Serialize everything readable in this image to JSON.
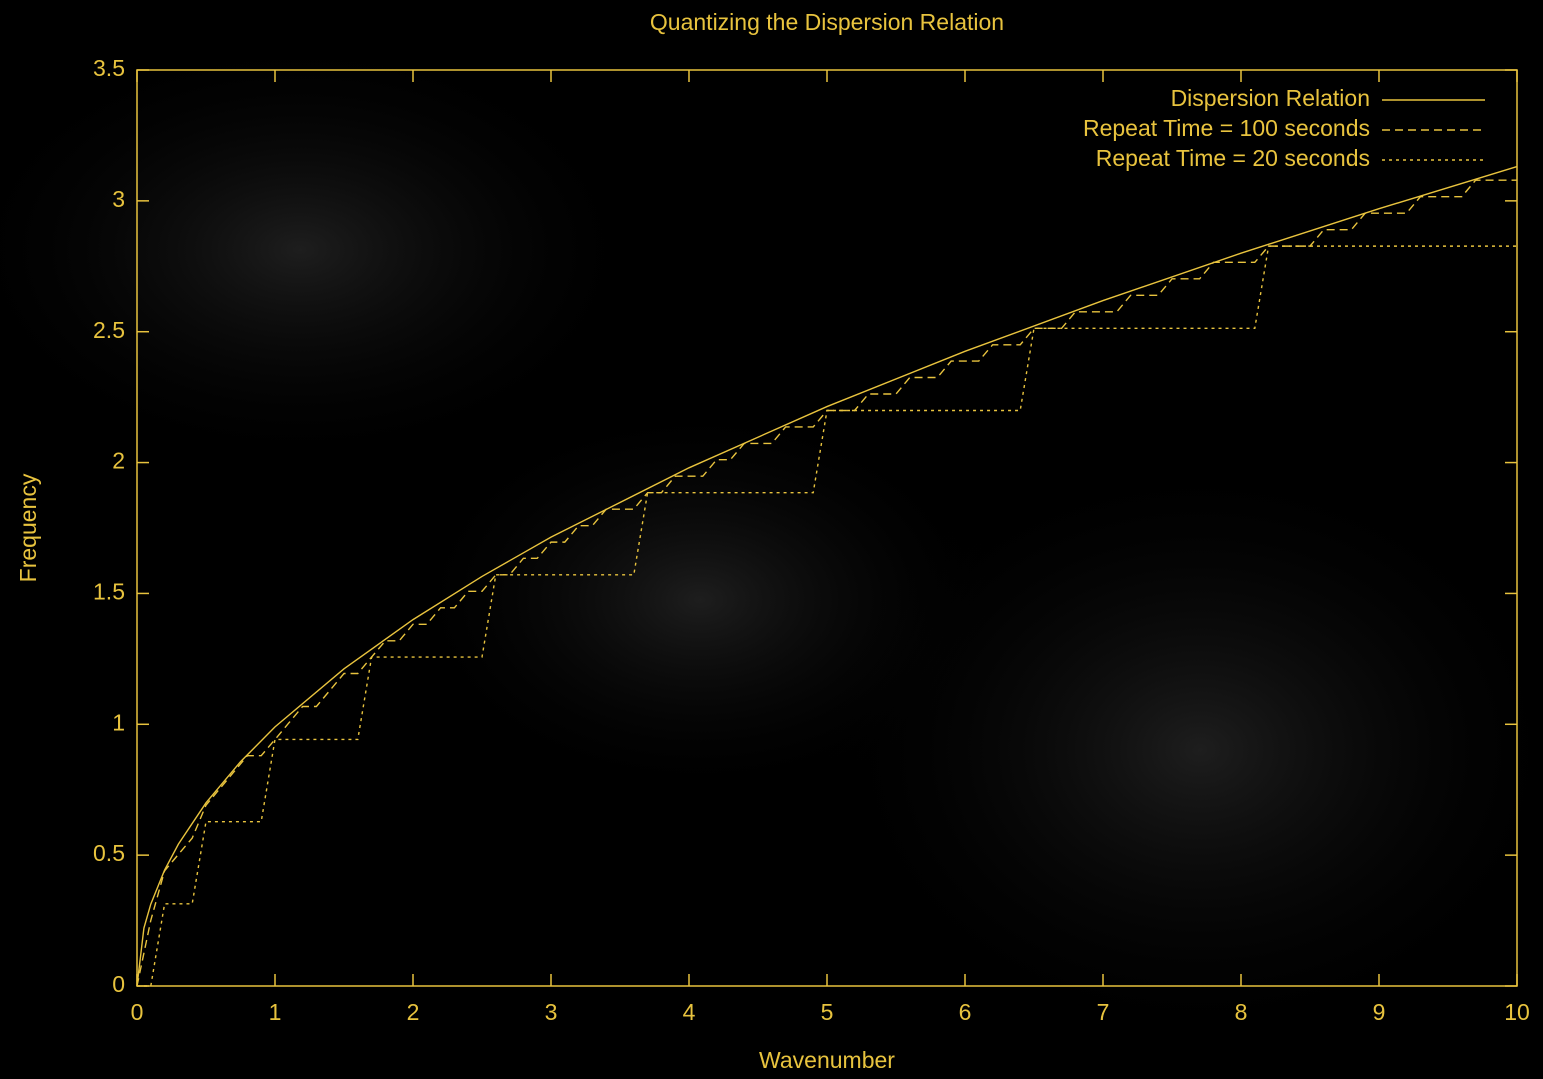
{
  "chart_data": {
    "type": "line",
    "title": "Quantizing the Dispersion Relation",
    "x_label": "Wavenumber",
    "y_label": "Frequency",
    "xlim": [
      0,
      10
    ],
    "ylim": [
      0,
      3.5
    ],
    "xticks": [
      0,
      1,
      2,
      3,
      4,
      5,
      6,
      7,
      8,
      9,
      10
    ],
    "yticks": [
      0,
      0.5,
      1,
      1.5,
      2,
      2.5,
      3,
      3.5
    ],
    "grid": false,
    "legend": "top-right",
    "color": "#e8c33e",
    "series": [
      {
        "name": "Dispersion Relation",
        "color": "#e8c33e",
        "dash": "solid",
        "x": [
          0,
          0.05,
          0.1,
          0.2,
          0.3,
          0.5,
          0.75,
          1,
          1.5,
          2,
          2.5,
          3,
          4,
          5,
          6,
          7,
          8,
          9,
          10
        ],
        "values": [
          0,
          0.221,
          0.313,
          0.443,
          0.542,
          0.7,
          0.857,
          0.99,
          1.212,
          1.4,
          1.565,
          1.715,
          1.98,
          2.214,
          2.425,
          2.619,
          2.8,
          2.97,
          3.131
        ]
      },
      {
        "name": "Repeat Time = 100 seconds",
        "color": "#e8c33e",
        "dash": "dashed",
        "x": [
          0,
          0.1,
          0.2,
          0.3,
          0.4,
          0.5,
          0.6,
          0.7,
          0.8,
          0.9,
          1.0,
          1.1,
          1.2,
          1.3,
          1.4,
          1.5,
          1.6,
          1.7,
          1.8,
          1.9,
          2.0,
          2.1,
          2.2,
          2.3,
          2.4,
          2.5,
          2.6,
          2.7,
          2.8,
          2.9,
          3.0,
          3.1,
          3.2,
          3.3,
          3.4,
          3.6,
          3.7,
          3.8,
          3.9,
          4.1,
          4.2,
          4.3,
          4.4,
          4.6,
          4.7,
          4.9,
          5.0,
          5.2,
          5.3,
          5.5,
          5.6,
          5.8,
          5.9,
          6.1,
          6.2,
          6.4,
          6.5,
          6.7,
          6.8,
          7.1,
          7.2,
          7.4,
          7.5,
          7.7,
          7.8,
          8.1,
          8.2,
          8.5,
          8.6,
          8.8,
          8.9,
          9.2,
          9.3,
          9.6,
          9.7,
          10
        ],
        "values": [
          0,
          0.251,
          0.44,
          0.503,
          0.565,
          0.691,
          0.754,
          0.817,
          0.88,
          0.88,
          0.942,
          1.005,
          1.068,
          1.068,
          1.131,
          1.194,
          1.194,
          1.257,
          1.319,
          1.319,
          1.382,
          1.382,
          1.445,
          1.445,
          1.508,
          1.508,
          1.571,
          1.571,
          1.634,
          1.634,
          1.696,
          1.696,
          1.759,
          1.759,
          1.822,
          1.822,
          1.885,
          1.885,
          1.948,
          1.948,
          2.011,
          2.011,
          2.073,
          2.073,
          2.136,
          2.136,
          2.199,
          2.199,
          2.262,
          2.262,
          2.325,
          2.325,
          2.388,
          2.388,
          2.45,
          2.45,
          2.513,
          2.513,
          2.576,
          2.576,
          2.639,
          2.639,
          2.702,
          2.702,
          2.765,
          2.765,
          2.827,
          2.827,
          2.89,
          2.89,
          2.953,
          2.953,
          3.016,
          3.016,
          3.079,
          3.079
        ]
      },
      {
        "name": "Repeat Time = 20 seconds",
        "color": "#e8c33e",
        "dash": "dotted",
        "x": [
          0,
          0.1,
          0.2,
          0.4,
          0.5,
          0.9,
          1.0,
          1.6,
          1.7,
          2.5,
          2.6,
          3.6,
          3.7,
          4.9,
          5.0,
          6.4,
          6.5,
          8.1,
          8.2,
          10
        ],
        "values": [
          0,
          0,
          0.314,
          0.314,
          0.628,
          0.628,
          0.942,
          0.942,
          1.257,
          1.257,
          1.571,
          1.571,
          1.885,
          1.885,
          2.199,
          2.199,
          2.513,
          2.513,
          2.827,
          2.827
        ]
      }
    ]
  }
}
